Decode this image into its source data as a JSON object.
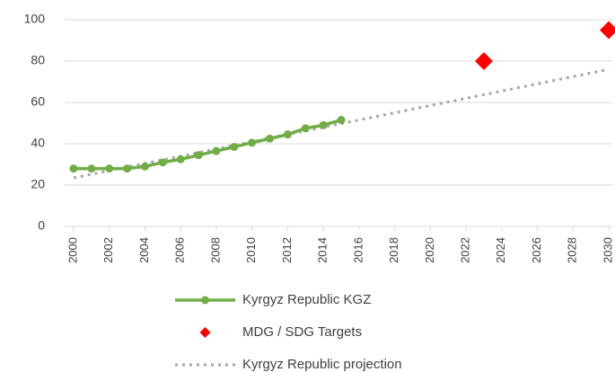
{
  "chart_data": {
    "type": "line",
    "xlim": [
      2000,
      2030
    ],
    "xticks": [
      2000,
      2002,
      2004,
      2006,
      2008,
      2010,
      2012,
      2014,
      2016,
      2018,
      2020,
      2022,
      2024,
      2026,
      2028,
      2030
    ],
    "ylim": [
      0,
      100
    ],
    "yticks": [
      0,
      20,
      40,
      60,
      80,
      100
    ],
    "grid": true,
    "series": [
      {
        "name": "Kyrgyz Republic KGZ",
        "color": "#70ad47",
        "style": "line-marker",
        "x": [
          2000,
          2001,
          2002,
          2003,
          2004,
          2005,
          2006,
          2007,
          2008,
          2009,
          2010,
          2011,
          2012,
          2013,
          2014,
          2015
        ],
        "values": [
          28,
          28,
          28,
          28,
          29,
          31,
          32.5,
          34.5,
          36.5,
          38.5,
          40.5,
          42.5,
          44.5,
          47.5,
          49,
          51.5
        ]
      },
      {
        "name": "MDG / SDG Targets",
        "color": "#ff0000",
        "style": "diamond",
        "x": [
          2023,
          2030
        ],
        "values": [
          80,
          95
        ]
      },
      {
        "name": "Kyrgyz Republic projection",
        "color": "#a6a6a6",
        "style": "dotted",
        "x": [
          2000,
          2030
        ],
        "values": [
          23.5,
          76
        ]
      }
    ]
  }
}
